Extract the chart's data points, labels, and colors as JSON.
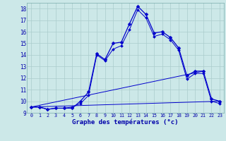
{
  "xlabel": "Graphe des températures (°c)",
  "bg_color": "#cce8e8",
  "grid_color": "#aacccc",
  "line_color": "#0000cc",
  "xlim": [
    -0.5,
    23.5
  ],
  "ylim": [
    9.0,
    18.5
  ],
  "yticks": [
    9,
    10,
    11,
    12,
    13,
    14,
    15,
    16,
    17,
    18
  ],
  "xticks": [
    0,
    1,
    2,
    3,
    4,
    5,
    6,
    7,
    8,
    9,
    10,
    11,
    12,
    13,
    14,
    15,
    16,
    17,
    18,
    19,
    20,
    21,
    22,
    23
  ],
  "line1_x": [
    0,
    1,
    2,
    3,
    4,
    5,
    6,
    7,
    8,
    9,
    10,
    11,
    12,
    13,
    14,
    15,
    16,
    17,
    18,
    19,
    20,
    21,
    22,
    23
  ],
  "line1_y": [
    9.5,
    9.5,
    9.3,
    9.4,
    9.4,
    9.4,
    10.0,
    10.8,
    14.1,
    13.6,
    15.0,
    15.1,
    16.7,
    18.2,
    17.5,
    15.9,
    16.0,
    15.5,
    14.6,
    12.2,
    12.6,
    12.6,
    10.2,
    10.0
  ],
  "line2_x": [
    0,
    1,
    2,
    3,
    4,
    5,
    6,
    7,
    8,
    9,
    10,
    11,
    12,
    13,
    14,
    15,
    16,
    17,
    18,
    19,
    20,
    21,
    22,
    23
  ],
  "line2_y": [
    9.5,
    9.5,
    9.3,
    9.4,
    9.4,
    9.5,
    9.8,
    10.5,
    14.0,
    13.5,
    14.5,
    14.8,
    16.2,
    17.9,
    17.2,
    15.6,
    15.8,
    15.3,
    14.4,
    11.9,
    12.4,
    12.4,
    10.0,
    9.8
  ],
  "line3_x": [
    0,
    21
  ],
  "line3_y": [
    9.5,
    12.6
  ],
  "line4_x": [
    0,
    23
  ],
  "line4_y": [
    9.5,
    10.0
  ]
}
